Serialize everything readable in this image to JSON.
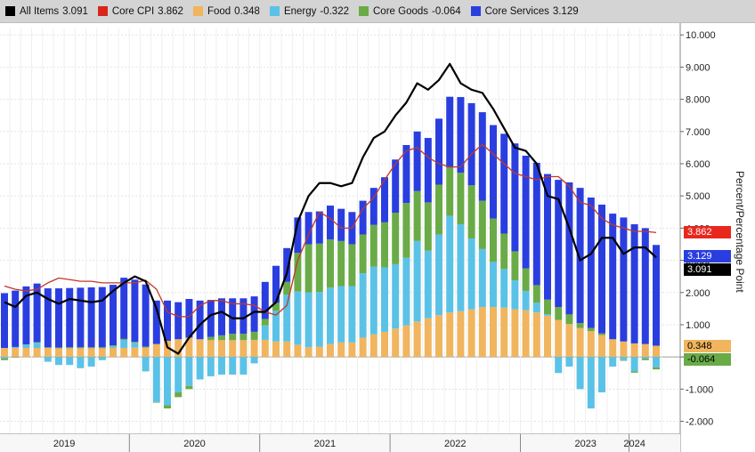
{
  "legend": [
    {
      "name": "All Items",
      "value": "3.091",
      "color": "#000000"
    },
    {
      "name": "Core CPI",
      "value": "3.862",
      "color": "#d9261c"
    },
    {
      "name": "Food",
      "value": "0.348",
      "color": "#f0b55e"
    },
    {
      "name": "Energy",
      "value": "-0.322",
      "color": "#5bc2e7"
    },
    {
      "name": "Core Goods",
      "value": "-0.064",
      "color": "#6aab48"
    },
    {
      "name": "Core Services",
      "value": "3.129",
      "color": "#2a3ee0"
    }
  ],
  "axis": {
    "ylabel": "Percent/Percentage Point"
  },
  "value_tags": [
    {
      "label": "3.862",
      "series": "Core CPI",
      "value": 3.862,
      "bg": "#e8281e",
      "fg": "#ffffff"
    },
    {
      "label": "3.129",
      "series": "Core Services",
      "value": 3.129,
      "bg": "#2a3ee0",
      "fg": "#ffffff"
    },
    {
      "label": "3.091",
      "series": "All Items",
      "value": 3.091,
      "bg": "#000000",
      "fg": "#ffffff"
    },
    {
      "label": "0.348",
      "series": "Food",
      "value": 0.348,
      "bg": "#f0b55e",
      "fg": "#000000"
    },
    {
      "label": "-0.064",
      "series": "Core Goods",
      "value": -0.064,
      "bg": "#6aab48",
      "fg": "#000000"
    }
  ],
  "chart_data": {
    "type": "bar",
    "stacked": true,
    "x_start": "2019-01",
    "ylim": [
      -2.4,
      10.2
    ],
    "yticks": [
      "10.000",
      "9.000",
      "8.000",
      "7.000",
      "6.000",
      "5.000",
      "4.000",
      "3.000",
      "2.000",
      "1.000",
      "0.000",
      "-1.000",
      "-2.000"
    ],
    "ytick_values": [
      10,
      9,
      8,
      7,
      6,
      5,
      4,
      3,
      2,
      1,
      0,
      -1,
      -2
    ],
    "xlabels": [
      "2019",
      "2020",
      "2021",
      "2022",
      "2023",
      "2024"
    ],
    "xlabel_month_index": [
      5.5,
      17.5,
      29.5,
      41.5,
      53.5,
      58
    ],
    "year_boundaries": [
      11.5,
      23.5,
      35.5,
      47.5,
      57.5
    ],
    "grid": true,
    "series": [
      {
        "name": "Food",
        "color": "#f0b55e",
        "values": [
          0.28,
          0.28,
          0.28,
          0.28,
          0.28,
          0.27,
          0.27,
          0.27,
          0.27,
          0.27,
          0.28,
          0.28,
          0.29,
          0.29,
          0.4,
          0.5,
          0.55,
          0.6,
          0.55,
          0.52,
          0.52,
          0.52,
          0.52,
          0.53,
          0.53,
          0.48,
          0.48,
          0.38,
          0.3,
          0.32,
          0.4,
          0.45,
          0.45,
          0.6,
          0.7,
          0.78,
          0.88,
          0.98,
          1.1,
          1.2,
          1.3,
          1.38,
          1.42,
          1.48,
          1.55,
          1.55,
          1.53,
          1.48,
          1.45,
          1.38,
          1.28,
          1.15,
          1.02,
          0.9,
          0.8,
          0.68,
          0.55,
          0.48,
          0.42,
          0.4,
          0.348
        ]
      },
      {
        "name": "Energy",
        "color": "#5bc2e7",
        "values": [
          -0.05,
          0.03,
          0.11,
          0.16,
          -0.15,
          -0.25,
          -0.25,
          -0.35,
          -0.3,
          -0.1,
          0.05,
          0.25,
          0.15,
          -0.45,
          -1.4,
          -1.5,
          -1.1,
          -0.9,
          -0.7,
          -0.6,
          -0.55,
          -0.55,
          -0.55,
          -0.2,
          0.45,
          0.95,
          1.45,
          1.65,
          1.7,
          1.7,
          1.75,
          1.75,
          1.75,
          2.0,
          2.1,
          2.0,
          2.0,
          2.1,
          2.5,
          2.1,
          2.5,
          3.0,
          2.7,
          2.2,
          1.8,
          1.4,
          1.2,
          0.9,
          0.6,
          0.3,
          0.05,
          -0.5,
          -0.3,
          -1.0,
          -1.6,
          -1.1,
          -0.3,
          -0.1,
          -0.45,
          -0.05,
          -0.322
        ]
      },
      {
        "name": "Core Goods",
        "color": "#6aab48",
        "values": [
          -0.05,
          -0.02,
          0.0,
          0.02,
          0.02,
          0.02,
          0.03,
          0.03,
          0.03,
          0.03,
          0.03,
          0.03,
          0.03,
          0.03,
          -0.02,
          -0.1,
          -0.15,
          -0.1,
          0.0,
          0.1,
          0.15,
          0.2,
          0.2,
          0.25,
          0.2,
          0.25,
          0.4,
          1.2,
          1.5,
          1.5,
          1.5,
          1.4,
          1.3,
          1.2,
          1.3,
          1.4,
          1.6,
          1.7,
          1.55,
          1.5,
          1.55,
          1.5,
          1.6,
          1.65,
          1.5,
          1.35,
          1.1,
          0.9,
          0.7,
          0.55,
          0.45,
          0.4,
          0.3,
          0.15,
          0.1,
          0.05,
          0.0,
          -0.02,
          -0.04,
          -0.05,
          -0.064
        ]
      },
      {
        "name": "Core Services",
        "color": "#2a3ee0",
        "values": [
          1.7,
          1.75,
          1.8,
          1.82,
          1.83,
          1.84,
          1.84,
          1.85,
          1.86,
          1.87,
          1.88,
          1.9,
          1.93,
          1.93,
          1.35,
          1.25,
          1.15,
          1.2,
          1.2,
          1.15,
          1.15,
          1.1,
          1.1,
          1.1,
          1.15,
          1.15,
          1.05,
          1.1,
          1.0,
          1.0,
          1.05,
          1.0,
          1.0,
          1.05,
          1.15,
          1.4,
          1.65,
          1.8,
          1.85,
          2.0,
          2.05,
          2.2,
          2.35,
          2.55,
          2.75,
          2.9,
          3.1,
          3.35,
          3.5,
          3.8,
          3.9,
          3.95,
          4.1,
          4.2,
          4.05,
          4.0,
          3.9,
          3.85,
          3.7,
          3.6,
          3.129
        ]
      }
    ],
    "lines": [
      {
        "name": "Core CPI",
        "color": "#c0392b",
        "width": 1.3,
        "values": [
          2.2,
          2.1,
          2.05,
          2.1,
          2.3,
          2.45,
          2.4,
          2.35,
          2.35,
          2.3,
          2.3,
          2.3,
          2.3,
          2.38,
          2.1,
          1.4,
          1.25,
          1.25,
          1.6,
          1.75,
          1.75,
          1.65,
          1.65,
          1.6,
          1.4,
          1.3,
          1.6,
          3.0,
          3.8,
          4.5,
          4.3,
          4.0,
          4.0,
          4.6,
          4.95,
          5.5,
          6.0,
          6.4,
          6.5,
          6.2,
          6.0,
          5.9,
          5.9,
          6.3,
          6.6,
          6.3,
          6.0,
          5.7,
          5.6,
          5.5,
          5.6,
          5.6,
          5.3,
          4.8,
          4.7,
          4.3,
          4.1,
          4.0,
          3.9,
          3.9,
          3.862
        ]
      },
      {
        "name": "All Items",
        "color": "#000000",
        "width": 2.2,
        "values": [
          1.7,
          1.55,
          1.9,
          2.0,
          1.8,
          1.65,
          1.8,
          1.75,
          1.7,
          1.75,
          2.05,
          2.3,
          2.5,
          2.35,
          1.5,
          0.3,
          0.1,
          0.6,
          1.0,
          1.3,
          1.4,
          1.2,
          1.2,
          1.4,
          1.4,
          1.7,
          2.6,
          4.2,
          5.0,
          5.4,
          5.4,
          5.3,
          5.4,
          6.2,
          6.8,
          7.0,
          7.5,
          7.9,
          8.5,
          8.3,
          8.6,
          9.1,
          8.5,
          8.3,
          8.2,
          7.7,
          7.1,
          6.5,
          6.4,
          6.0,
          5.0,
          4.9,
          4.0,
          3.0,
          3.2,
          3.7,
          3.7,
          3.2,
          3.4,
          3.4,
          3.091
        ]
      }
    ]
  }
}
